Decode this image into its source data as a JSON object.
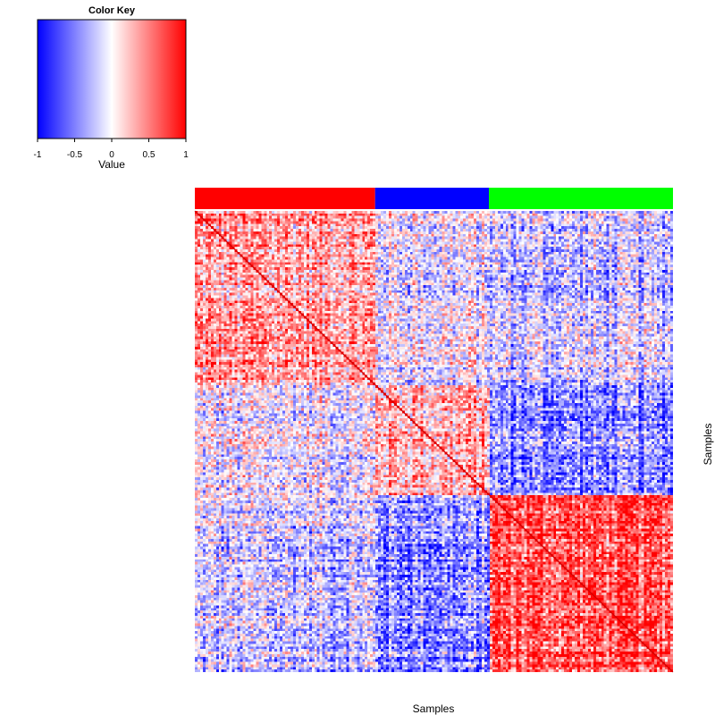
{
  "chart_data": {
    "type": "heatmap",
    "title": "",
    "xlabel": "Samples",
    "ylabel": "Samples",
    "color_key": {
      "title": "Color Key",
      "label": "Value",
      "range": [
        -1,
        1
      ],
      "ticks": [
        "-1",
        "-0.5",
        "0",
        "0.5",
        "1"
      ],
      "colors": {
        "low": "#0000ff",
        "mid": "#ffffff",
        "high": "#ff0000"
      }
    },
    "groups": [
      {
        "name": "group-red",
        "color": "#ff0000",
        "fraction": 0.377
      },
      {
        "name": "group-blue",
        "color": "#0000ff",
        "fraction": 0.238
      },
      {
        "name": "group-green",
        "color": "#00ff00",
        "fraction": 0.385
      }
    ],
    "block_means": [
      [
        0.35,
        -0.05,
        -0.2
      ],
      [
        -0.05,
        0.3,
        -0.45
      ],
      [
        -0.2,
        -0.45,
        0.65
      ]
    ],
    "diagonal_value": 1,
    "n_samples": 180
  }
}
